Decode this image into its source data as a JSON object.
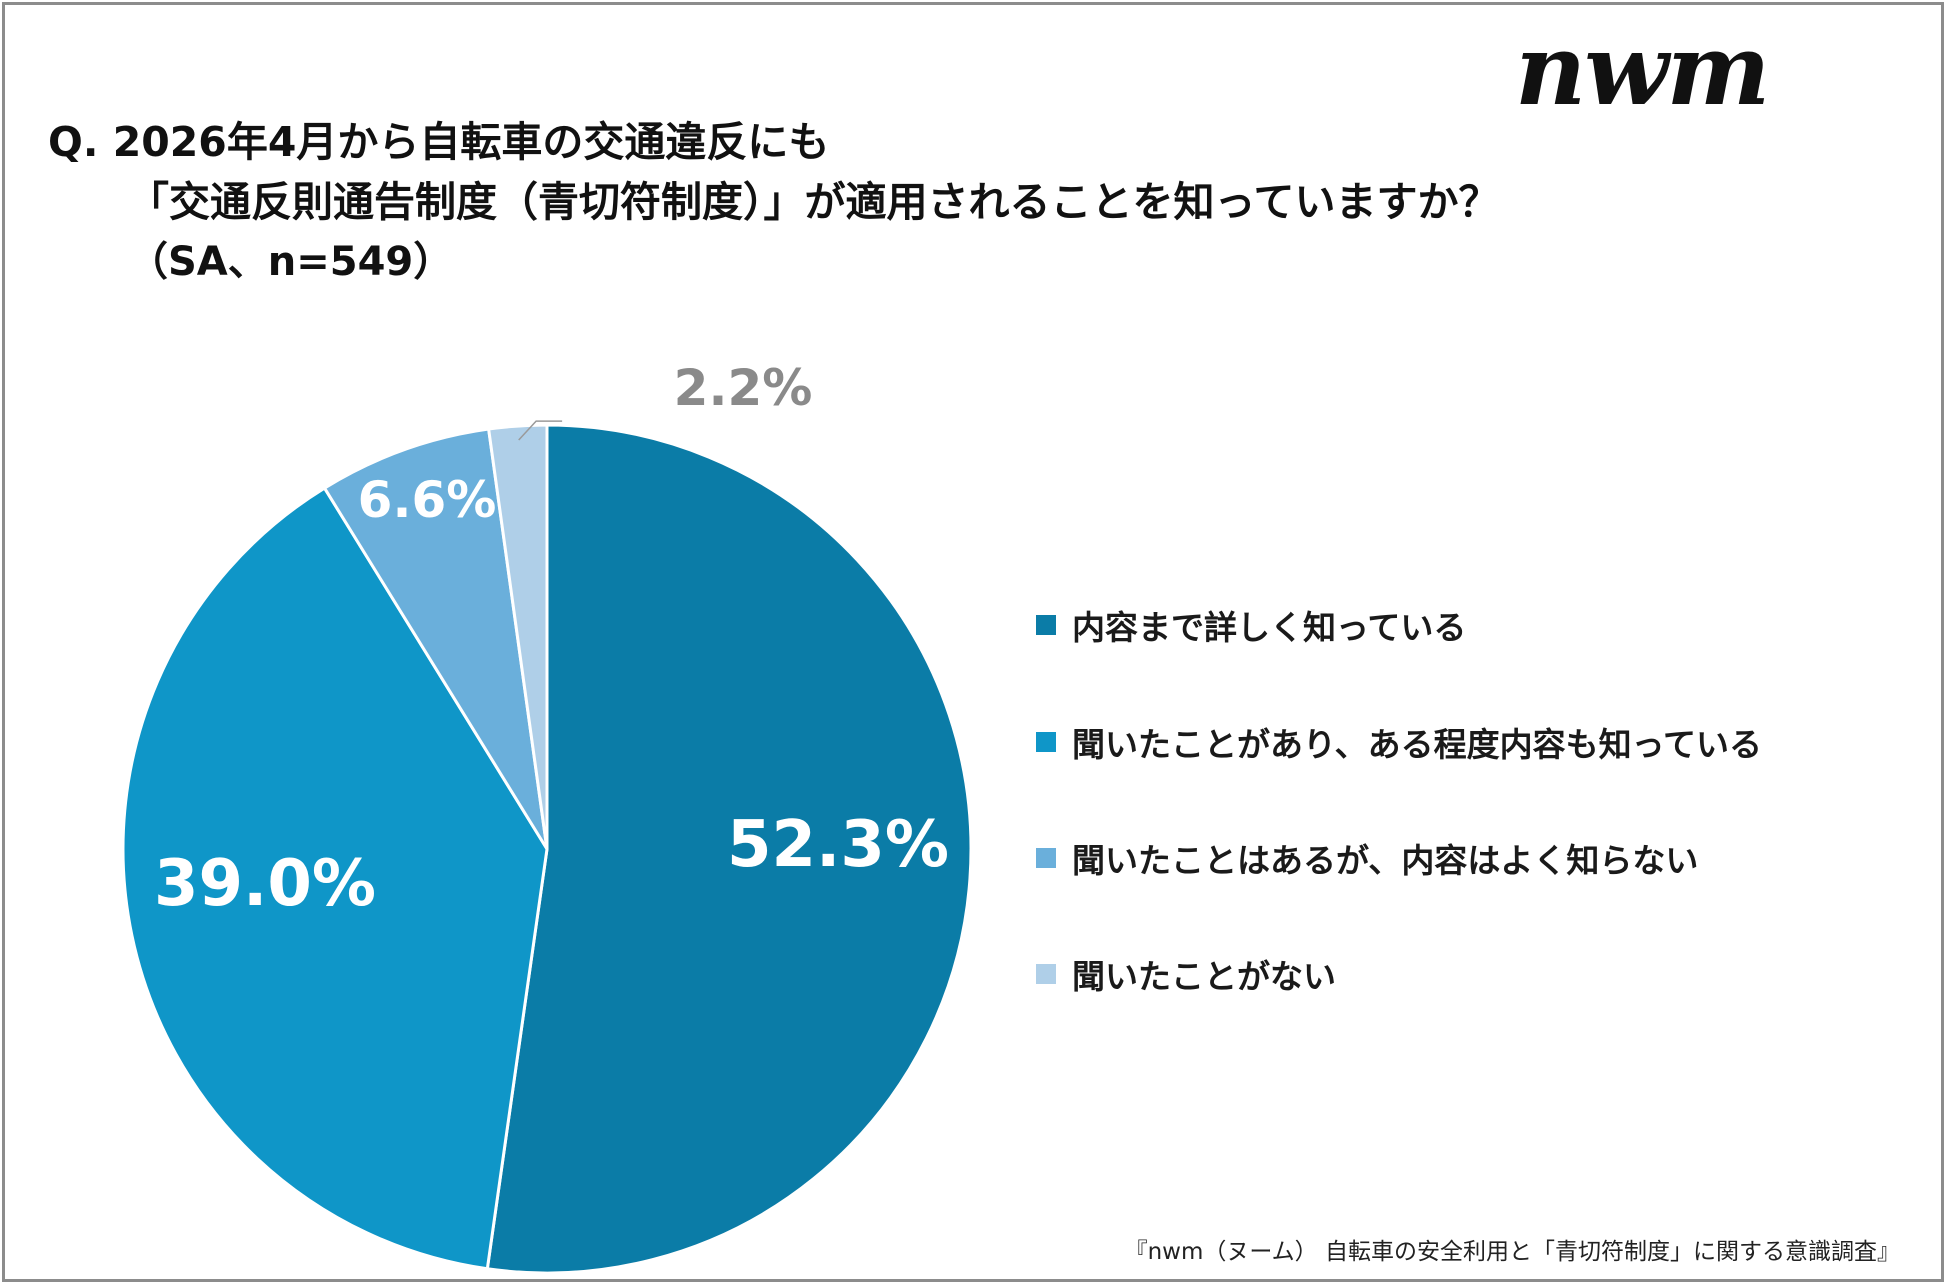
{
  "logo": {
    "text": "nwm"
  },
  "title": {
    "line1": "Q. 2026年4月から自転車の交通違反にも",
    "line2": "「交通反則通告制度（青切符制度）」が適用されることを知っていますか？",
    "line3": "（SA、n=549）"
  },
  "footnote": "『nwm（ヌーム） 自転車の安全利用と「青切符制度」に関する意識調査』",
  "chart_data": {
    "type": "pie",
    "start_angle": "12 o'clock",
    "direction": "clockwise",
    "legend_position": "right",
    "slices": [
      {
        "label": "内容まで詳しく知っている",
        "value": 52.3,
        "value_label": "52.3%",
        "color": "#0b7ca7"
      },
      {
        "label": "聞いたことがあり、ある程度内容も知っている",
        "value": 39.0,
        "value_label": "39.0%",
        "color": "#0f96c8"
      },
      {
        "label": "聞いたことはあるが、内容はよく知らない",
        "value": 6.6,
        "value_label": "6.6%",
        "color": "#6aafdb"
      },
      {
        "label": "聞いたことがない",
        "value": 2.2,
        "value_label": "2.2%",
        "color": "#afcfe8"
      }
    ]
  }
}
